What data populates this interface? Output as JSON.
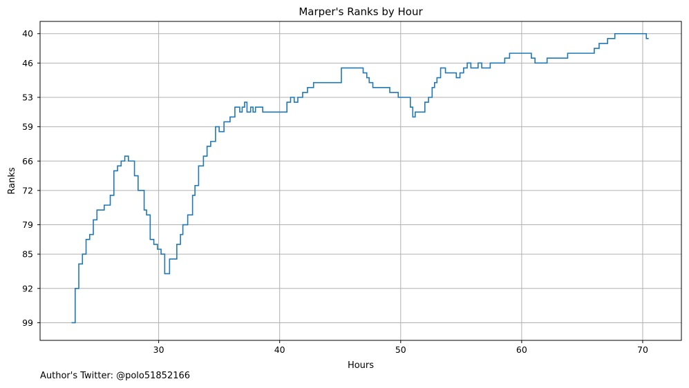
{
  "chart_data": {
    "type": "line",
    "step": true,
    "title": "Marper's Ranks by Hour",
    "xlabel": "Hours",
    "ylabel": "Ranks",
    "xlim": [
      20.2,
      73.2
    ],
    "ylim": [
      102.6,
      37.5
    ],
    "y_inverted": true,
    "grid": true,
    "xticks": [
      30,
      40,
      50,
      60,
      70
    ],
    "yticks": [
      40,
      46,
      53,
      59,
      66,
      72,
      79,
      85,
      92,
      99
    ],
    "line_color": "#1f77b4",
    "series": [
      {
        "x": [
          22.8,
          23.1,
          23.4,
          23.7,
          24.0,
          24.3,
          24.6,
          24.9,
          25.5,
          26.0,
          26.3,
          26.6,
          26.9,
          27.2,
          27.5,
          28.0,
          28.3,
          28.8,
          29.0,
          29.3,
          29.6,
          29.9,
          30.2,
          30.5,
          30.9,
          31.5,
          31.8,
          32.0,
          32.4,
          32.8,
          33.0,
          33.3,
          33.7,
          34.0,
          34.3,
          34.7,
          35.0,
          35.4,
          35.9,
          36.3,
          36.7,
          36.9,
          37.1,
          37.3,
          37.6,
          37.8,
          38.0,
          38.6,
          40.6,
          40.9,
          41.2,
          41.5,
          41.9,
          42.3,
          42.8,
          45.1,
          46.9,
          47.2,
          47.4,
          47.7,
          49.1,
          49.8,
          50.8,
          51.0,
          51.2,
          52.0,
          52.3,
          52.6,
          52.8,
          53.0,
          53.3,
          53.7,
          54.6,
          54.9,
          55.2,
          55.5,
          55.8,
          56.4,
          56.7,
          57.4,
          58.6,
          59.0,
          60.8,
          61.1,
          61.3,
          62.1,
          63.8,
          66.0,
          66.4,
          67.1,
          67.7,
          68.0,
          68.2,
          70.3
        ],
        "y": [
          99,
          92,
          87,
          85,
          82,
          81,
          78,
          76,
          75,
          73,
          68,
          67,
          66,
          65,
          66,
          69,
          72,
          76,
          77,
          82,
          83,
          84,
          85,
          89,
          86,
          83,
          81,
          79,
          77,
          73,
          71,
          67,
          65,
          63,
          62,
          59,
          60,
          58,
          57,
          55,
          56,
          55,
          54,
          56,
          55,
          56,
          55,
          56,
          54,
          53,
          54,
          53,
          52,
          51,
          50,
          47,
          48,
          49,
          50,
          51,
          52,
          53,
          55,
          57,
          56,
          54,
          53,
          51,
          50,
          49,
          47,
          48,
          49,
          48,
          47,
          46,
          47,
          46,
          47,
          46,
          45,
          44,
          45,
          46,
          46,
          45,
          44,
          43,
          42,
          41,
          40,
          40,
          40,
          41
        ]
      }
    ]
  },
  "footer": {
    "credit": "Author's Twitter: @polo51852166"
  }
}
